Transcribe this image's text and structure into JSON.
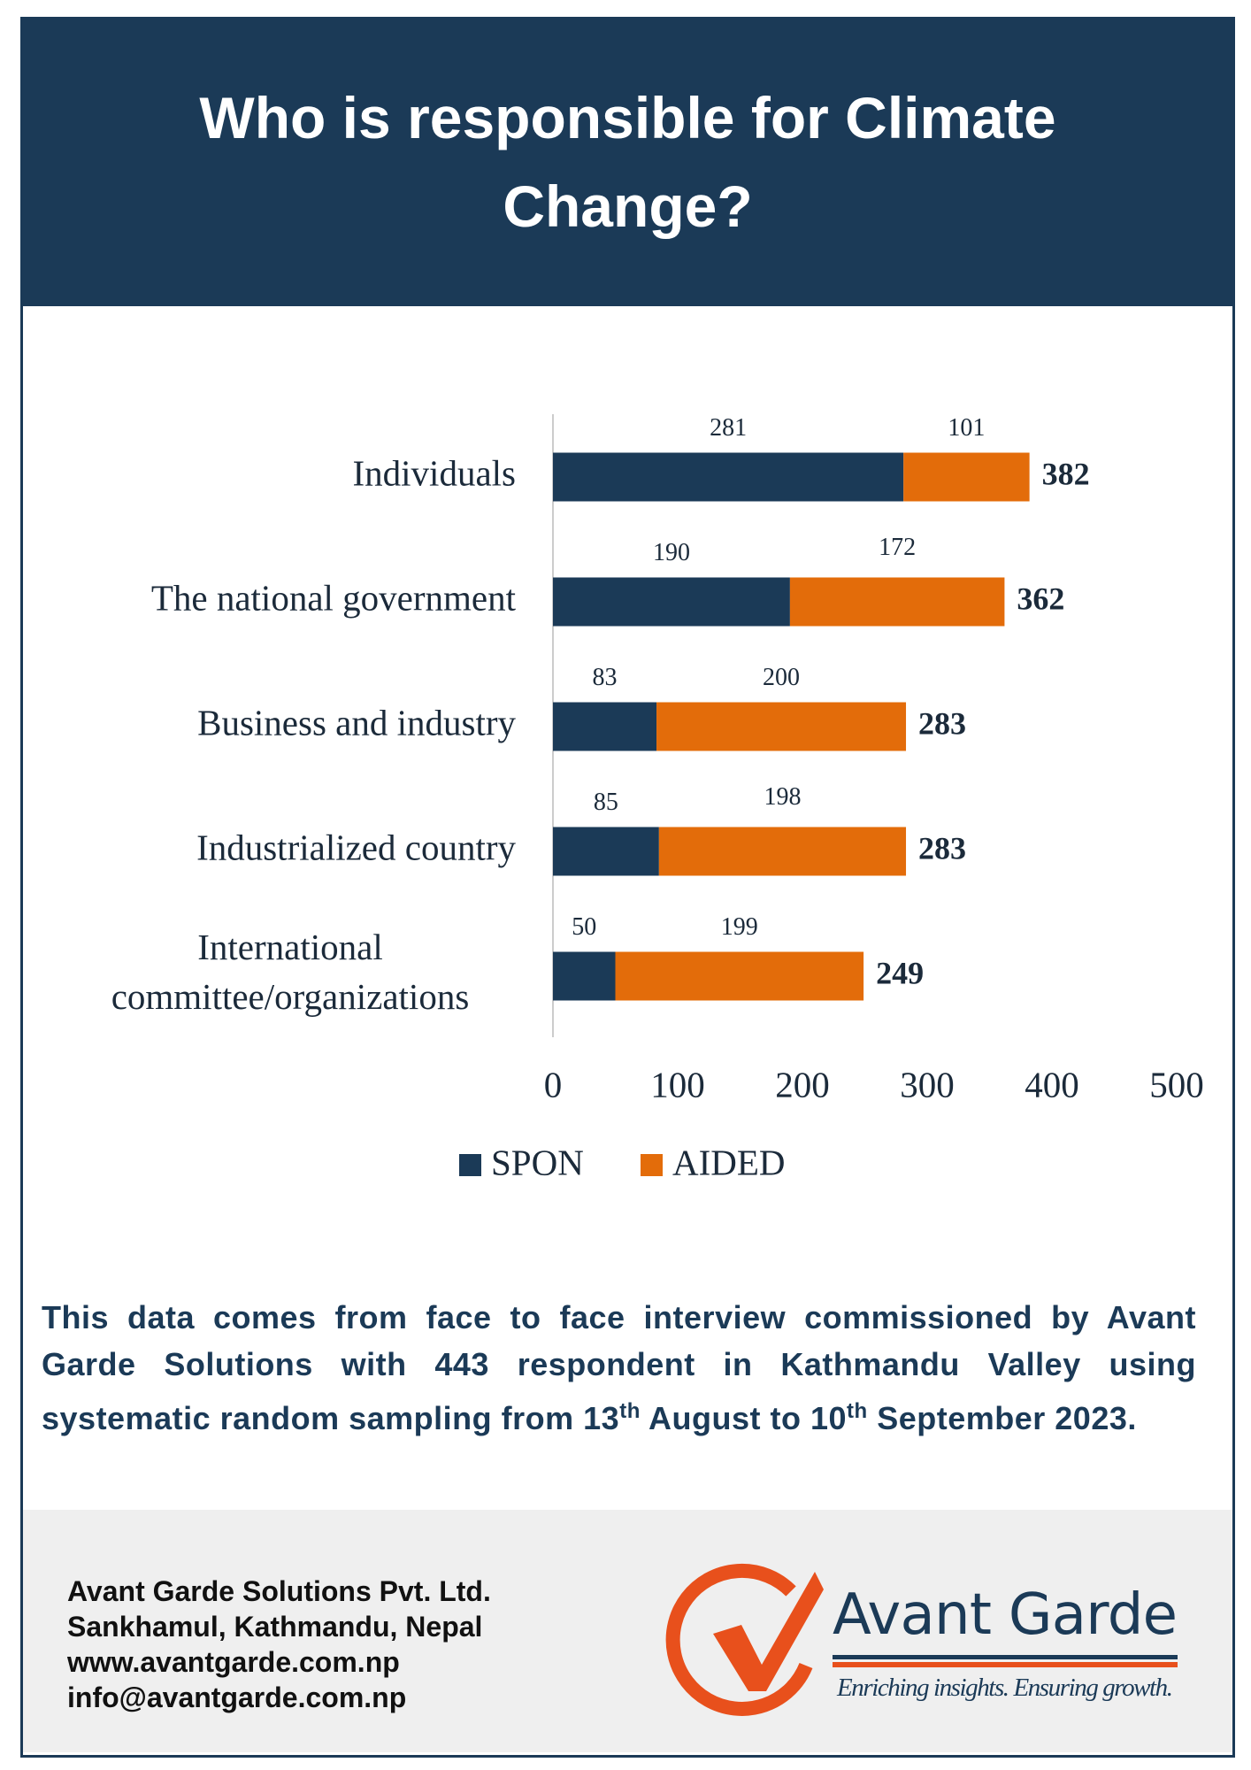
{
  "title": "Who is responsible for Climate Change?",
  "chart_data": {
    "type": "stacked-bar-horizontal",
    "categories": [
      "Individuals",
      "The national government",
      "Business and industry",
      "Industrialized country",
      "International\ncommittee/organizations"
    ],
    "series": [
      {
        "name": "SPON",
        "color": "#1b3a57",
        "values": [
          281,
          190,
          83,
          85,
          50
        ]
      },
      {
        "name": "AIDED",
        "color": "#e36c0a",
        "values": [
          101,
          172,
          200,
          198,
          199
        ]
      }
    ],
    "totals": [
      382,
      362,
      283,
      283,
      249
    ],
    "xlim": [
      0,
      500
    ],
    "xticks": [
      0,
      100,
      200,
      300,
      400,
      500
    ],
    "grid": false,
    "legend": "bottom"
  },
  "footnote": [
    "This data comes from face to face interview commissioned by Avant Garde Solutions with 443 respondent in Kathmandu Valley using systematic random sampling from 13",
    "th",
    " August to  10",
    "th",
    " September 2023."
  ],
  "footer": {
    "lines": [
      "Avant Garde Solutions Pvt. Ltd.",
      "Sankhamul, Kathmandu, Nepal",
      "www.avantgarde.com.np",
      "info@avantgarde.com.np"
    ],
    "logo_name": "Avant Garde",
    "tagline": "Enriching insights. Ensuring growth."
  }
}
